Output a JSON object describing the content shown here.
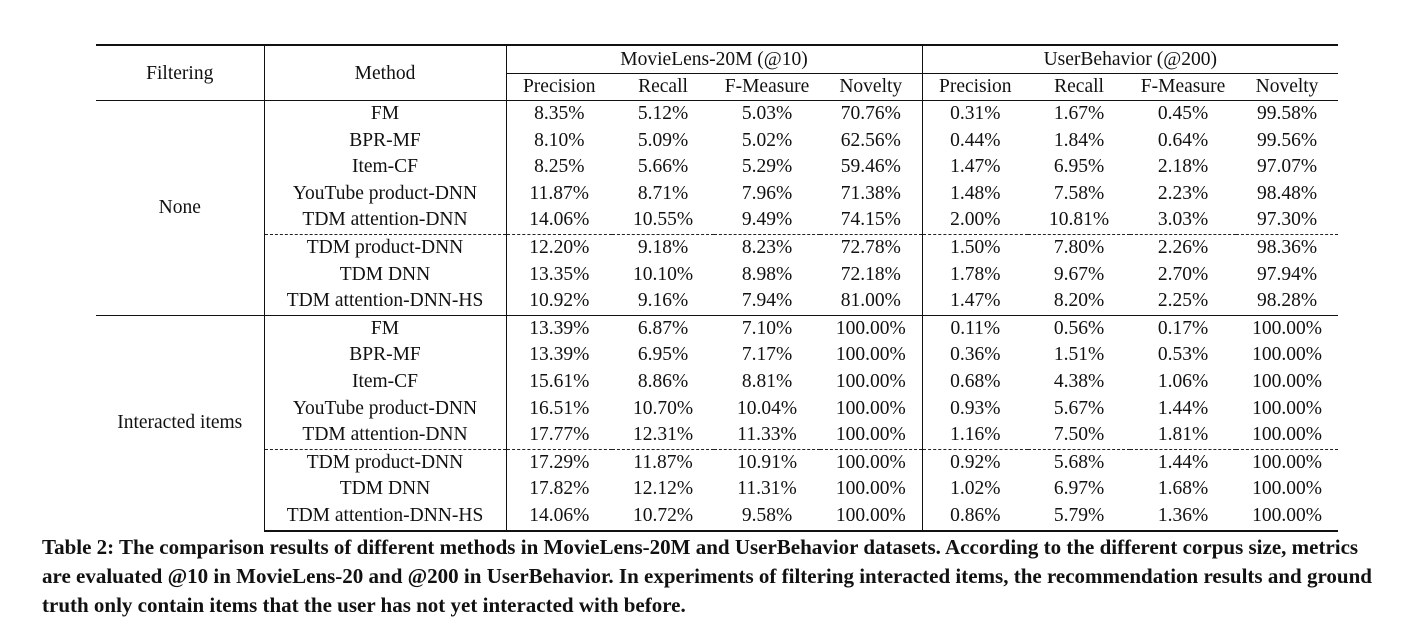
{
  "table": {
    "header": {
      "filtering": "Filtering",
      "method": "Method",
      "groups": [
        "MovieLens-20M (@10)",
        "UserBehavior (@200)"
      ],
      "metrics": [
        "Precision",
        "Recall",
        "F-Measure",
        "Novelty",
        "Precision",
        "Recall",
        "F-Measure",
        "Novelty"
      ]
    },
    "sections": [
      {
        "filtering": "None",
        "rows": [
          {
            "method": "FM",
            "values": [
              "8.35%",
              "5.12%",
              "5.03%",
              "70.76%",
              "0.31%",
              "1.67%",
              "0.45%",
              "99.58%"
            ],
            "bold": [
              false,
              false,
              false,
              false,
              false,
              false,
              false,
              true
            ],
            "dashed_above": false
          },
          {
            "method": "BPR-MF",
            "values": [
              "8.10%",
              "5.09%",
              "5.02%",
              "62.56%",
              "0.44%",
              "1.84%",
              "0.64%",
              "99.56%"
            ],
            "bold": [
              false,
              false,
              false,
              false,
              false,
              false,
              false,
              false
            ],
            "dashed_above": false
          },
          {
            "method": "Item-CF",
            "values": [
              "8.25%",
              "5.66%",
              "5.29%",
              "59.46%",
              "1.47%",
              "6.95%",
              "2.18%",
              "97.07%"
            ],
            "bold": [
              false,
              false,
              false,
              false,
              false,
              false,
              false,
              false
            ],
            "dashed_above": false
          },
          {
            "method": "YouTube product-DNN",
            "values": [
              "11.87%",
              "8.71%",
              "7.96%",
              "71.38%",
              "1.48%",
              "7.58%",
              "2.23%",
              "98.48%"
            ],
            "bold": [
              false,
              false,
              false,
              false,
              false,
              false,
              false,
              false
            ],
            "dashed_above": false
          },
          {
            "method": "TDM attention-DNN",
            "values": [
              "14.06%",
              "10.55%",
              "9.49%",
              "74.15%",
              "2.00%",
              "10.81%",
              "3.03%",
              "97.30%"
            ],
            "bold": [
              true,
              true,
              true,
              true,
              true,
              true,
              true,
              false
            ],
            "dashed_above": false
          },
          {
            "method": "TDM product-DNN",
            "values": [
              "12.20%",
              "9.18%",
              "8.23%",
              "72.78%",
              "1.50%",
              "7.80%",
              "2.26%",
              "98.36%"
            ],
            "bold": [
              false,
              false,
              false,
              false,
              false,
              false,
              false,
              false
            ],
            "dashed_above": true
          },
          {
            "method": "TDM DNN",
            "values": [
              "13.35%",
              "10.10%",
              "8.98%",
              "72.18%",
              "1.78%",
              "9.67%",
              "2.70%",
              "97.94%"
            ],
            "bold": [
              false,
              false,
              false,
              false,
              false,
              false,
              false,
              false
            ],
            "dashed_above": false
          },
          {
            "method": "TDM attention-DNN-HS",
            "values": [
              "10.92%",
              "9.16%",
              "7.94%",
              "81.00%",
              "1.47%",
              "8.20%",
              "2.25%",
              "98.28%"
            ],
            "bold": [
              false,
              false,
              false,
              false,
              false,
              false,
              false,
              false
            ],
            "dashed_above": false
          }
        ]
      },
      {
        "filtering": "Interacted items",
        "rows": [
          {
            "method": "FM",
            "values": [
              "13.39%",
              "6.87%",
              "7.10%",
              "100.00%",
              "0.11%",
              "0.56%",
              "0.17%",
              "100.00%"
            ],
            "bold": [
              false,
              false,
              false,
              true,
              false,
              false,
              false,
              true
            ],
            "dashed_above": false
          },
          {
            "method": "BPR-MF",
            "values": [
              "13.39%",
              "6.95%",
              "7.17%",
              "100.00%",
              "0.36%",
              "1.51%",
              "0.53%",
              "100.00%"
            ],
            "bold": [
              false,
              false,
              false,
              true,
              false,
              false,
              false,
              true
            ],
            "dashed_above": false
          },
          {
            "method": "Item-CF",
            "values": [
              "15.61%",
              "8.86%",
              "8.81%",
              "100.00%",
              "0.68%",
              "4.38%",
              "1.06%",
              "100.00%"
            ],
            "bold": [
              false,
              false,
              false,
              true,
              false,
              false,
              false,
              true
            ],
            "dashed_above": false
          },
          {
            "method": "YouTube product-DNN",
            "values": [
              "16.51%",
              "10.70%",
              "10.04%",
              "100.00%",
              "0.93%",
              "5.67%",
              "1.44%",
              "100.00%"
            ],
            "bold": [
              false,
              false,
              false,
              true,
              false,
              false,
              false,
              true
            ],
            "dashed_above": false
          },
          {
            "method": "TDM attention-DNN",
            "values": [
              "17.77%",
              "12.31%",
              "11.33%",
              "100.00%",
              "1.16%",
              "7.50%",
              "1.81%",
              "100.00%"
            ],
            "bold": [
              true,
              true,
              true,
              true,
              true,
              true,
              true,
              true
            ],
            "dashed_above": false
          },
          {
            "method": "TDM product-DNN",
            "values": [
              "17.29%",
              "11.87%",
              "10.91%",
              "100.00%",
              "0.92%",
              "5.68%",
              "1.44%",
              "100.00%"
            ],
            "bold": [
              false,
              false,
              false,
              false,
              false,
              false,
              false,
              false
            ],
            "dashed_above": true
          },
          {
            "method": "TDM DNN",
            "values": [
              "17.82%",
              "12.12%",
              "11.31%",
              "100.00%",
              "1.02%",
              "6.97%",
              "1.68%",
              "100.00%"
            ],
            "bold": [
              false,
              false,
              false,
              false,
              false,
              false,
              false,
              false
            ],
            "dashed_above": false
          },
          {
            "method": "TDM attention-DNN-HS",
            "values": [
              "14.06%",
              "10.72%",
              "9.58%",
              "100.00%",
              "0.86%",
              "5.79%",
              "1.36%",
              "100.00%"
            ],
            "bold": [
              false,
              false,
              false,
              false,
              false,
              false,
              false,
              false
            ],
            "dashed_above": false
          }
        ]
      }
    ]
  },
  "caption": "Table 2: The comparison results of different methods in MovieLens-20M and UserBehavior datasets. According to the different corpus size, metrics are evaluated @10 in MovieLens-20 and @200 in UserBehavior. In experiments of filtering interacted items, the recommendation results and ground truth only contain items that the user has not yet interacted with before."
}
